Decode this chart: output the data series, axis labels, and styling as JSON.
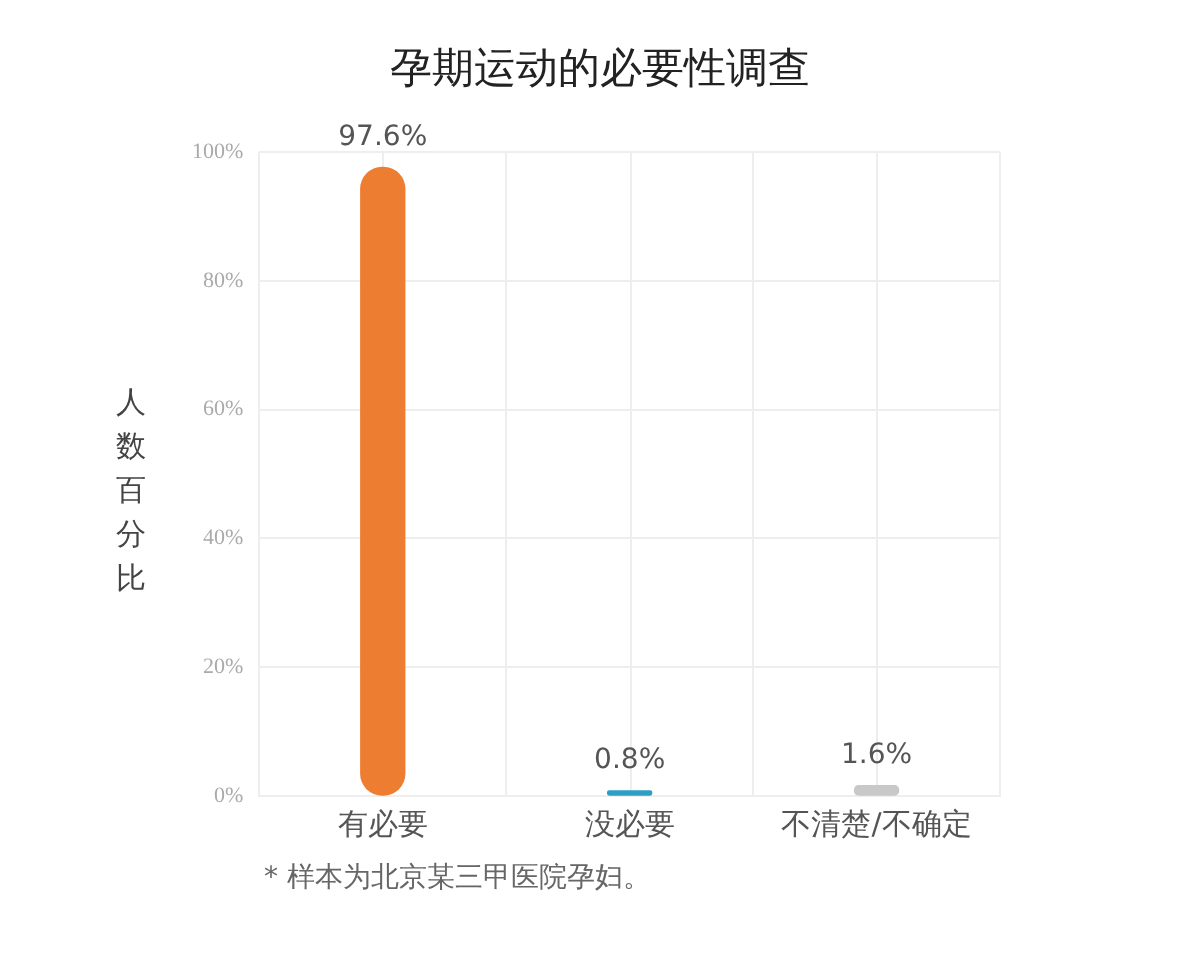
{
  "chart_data": {
    "type": "bar",
    "title": "孕期运动的必要性调查",
    "ylabel": "人数百分比",
    "categories": [
      "有必要",
      "没必要",
      "不清楚/不确定"
    ],
    "values": [
      97.6,
      0.8,
      1.6
    ],
    "colors": [
      "#ed7d31",
      "#2e9fc4",
      "#c8c8c8"
    ],
    "value_labels": [
      "97.6%",
      "0.8%",
      "1.6%"
    ],
    "ylim": [
      0,
      100
    ],
    "yticks": [
      {
        "value": 0,
        "label": "0%"
      },
      {
        "value": 20,
        "label": "20%"
      },
      {
        "value": 40,
        "label": "40%"
      },
      {
        "value": 60,
        "label": "60%"
      },
      {
        "value": 80,
        "label": "80%"
      },
      {
        "value": 100,
        "label": "100%"
      }
    ],
    "grid": true,
    "legend": false,
    "annotations": [
      "* 样本为北京某三甲医院孕妇。"
    ]
  }
}
